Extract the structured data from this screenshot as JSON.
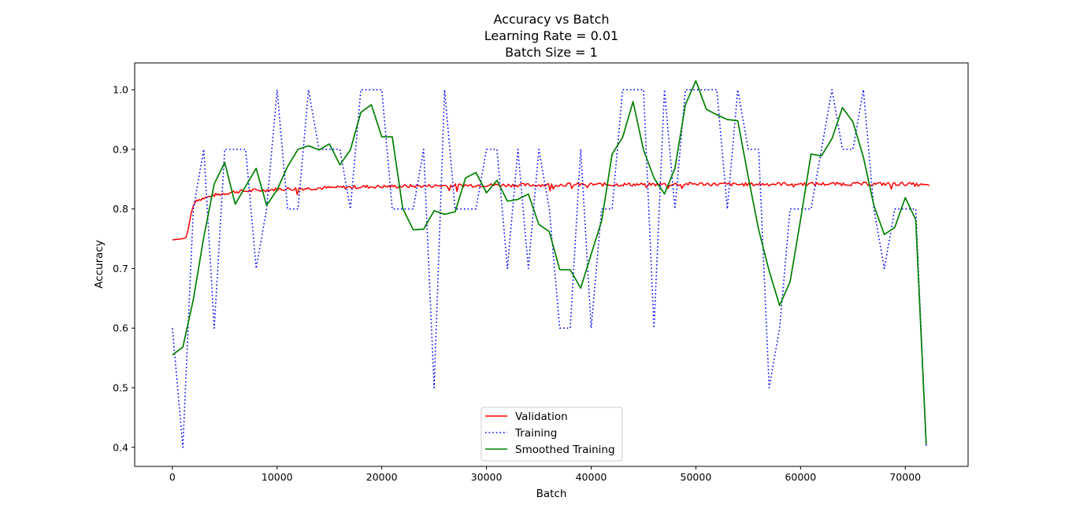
{
  "chart_data": {
    "type": "line",
    "title_lines": [
      "Accuracy vs Batch",
      "Learning Rate = 0.01",
      "Batch Size = 1"
    ],
    "xlabel": "Batch",
    "ylabel": "Accuracy",
    "xlim": [
      -3600,
      76000
    ],
    "ylim": [
      0.368,
      1.045
    ],
    "xticks": [
      0,
      10000,
      20000,
      30000,
      40000,
      50000,
      60000,
      70000
    ],
    "yticks": [
      0.4,
      0.5,
      0.6,
      0.7,
      0.8,
      0.9,
      1.0
    ],
    "xtick_labels": [
      "0",
      "10000",
      "20000",
      "30000",
      "40000",
      "50000",
      "60000",
      "70000"
    ],
    "ytick_labels": [
      "0.4",
      "0.5",
      "0.6",
      "0.7",
      "0.8",
      "0.9",
      "1.0"
    ],
    "grid": false,
    "legend_position": "lower center",
    "series": [
      {
        "name": "Validation",
        "color": "#ff0000",
        "style": "solid",
        "noise": true,
        "x": [
          0,
          500,
          1000,
          1300,
          1500,
          1800,
          2000,
          2300,
          3000,
          4000,
          5000,
          6000,
          8000,
          10000,
          14000,
          18000,
          22000,
          26000,
          30000,
          34000,
          38000,
          42000,
          46000,
          50000,
          54000,
          58000,
          62000,
          66000,
          70000,
          72300
        ],
        "y": [
          0.748,
          0.749,
          0.75,
          0.752,
          0.765,
          0.793,
          0.805,
          0.815,
          0.818,
          0.823,
          0.826,
          0.829,
          0.831,
          0.833,
          0.835,
          0.837,
          0.838,
          0.839,
          0.84,
          0.84,
          0.841,
          0.841,
          0.841,
          0.842,
          0.841,
          0.842,
          0.842,
          0.842,
          0.842,
          0.839
        ]
      },
      {
        "name": "Training",
        "color": "#0000ff",
        "style": "dotted",
        "x": [
          0,
          1000,
          2000,
          3000,
          4000,
          5000,
          6000,
          7000,
          8000,
          9000,
          10000,
          11000,
          12000,
          13000,
          14000,
          15000,
          16000,
          17000,
          18000,
          19000,
          20000,
          21000,
          22000,
          23000,
          24000,
          25000,
          26000,
          27000,
          28000,
          29000,
          30000,
          31000,
          32000,
          33000,
          34000,
          35000,
          36000,
          37000,
          38000,
          39000,
          40000,
          41000,
          42000,
          43000,
          44000,
          45000,
          46000,
          47000,
          48000,
          49000,
          50000,
          51000,
          52000,
          53000,
          54000,
          55000,
          56000,
          57000,
          58000,
          59000,
          60000,
          61000,
          62000,
          63000,
          64000,
          65000,
          66000,
          67000,
          68000,
          69000,
          70000,
          71000,
          72000
        ],
        "y": [
          0.6,
          0.4,
          0.8,
          0.9,
          0.6,
          0.9,
          0.9,
          0.9,
          0.7,
          0.8,
          1.0,
          0.8,
          0.8,
          1.0,
          0.9,
          0.9,
          0.9,
          0.8,
          1.0,
          1.0,
          1.0,
          0.8,
          0.8,
          0.8,
          0.9,
          0.5,
          1.0,
          0.8,
          0.8,
          0.8,
          0.9,
          0.9,
          0.7,
          0.9,
          0.7,
          0.9,
          0.8,
          0.6,
          0.6,
          0.9,
          0.6,
          0.8,
          0.8,
          1.0,
          1.0,
          1.0,
          0.6,
          1.0,
          0.8,
          1.0,
          1.0,
          1.0,
          1.0,
          0.8,
          1.0,
          0.9,
          0.9,
          0.5,
          0.6,
          0.8,
          0.8,
          0.8,
          0.9,
          1.0,
          0.9,
          0.9,
          1.0,
          0.8,
          0.7,
          0.8,
          0.8,
          0.8,
          0.4
        ]
      },
      {
        "name": "Smoothed Training",
        "color": "#008000",
        "style": "solid",
        "x": [
          0,
          1000,
          2000,
          3000,
          4000,
          5000,
          6000,
          7000,
          8000,
          9000,
          10000,
          11000,
          12000,
          13000,
          14000,
          15000,
          16000,
          17000,
          18000,
          19000,
          20000,
          21000,
          22000,
          23000,
          24000,
          25000,
          26000,
          27000,
          28000,
          29000,
          30000,
          31000,
          32000,
          33000,
          34000,
          35000,
          36000,
          37000,
          38000,
          39000,
          40000,
          41000,
          42000,
          43000,
          44000,
          45000,
          46000,
          47000,
          48000,
          49000,
          50000,
          51000,
          52000,
          53000,
          54000,
          55000,
          56000,
          57000,
          58000,
          59000,
          60000,
          61000,
          62000,
          63000,
          64000,
          65000,
          66000,
          67000,
          68000,
          69000,
          70000,
          71000,
          72000
        ],
        "y": [
          0.555,
          0.568,
          0.648,
          0.753,
          0.842,
          0.878,
          0.808,
          0.838,
          0.868,
          0.806,
          0.832,
          0.871,
          0.9,
          0.906,
          0.899,
          0.909,
          0.874,
          0.899,
          0.962,
          0.975,
          0.921,
          0.921,
          0.801,
          0.765,
          0.766,
          0.797,
          0.791,
          0.795,
          0.852,
          0.861,
          0.827,
          0.848,
          0.813,
          0.816,
          0.825,
          0.774,
          0.762,
          0.698,
          0.698,
          0.667,
          0.724,
          0.78,
          0.892,
          0.92,
          0.98,
          0.899,
          0.852,
          0.825,
          0.868,
          0.975,
          1.015,
          0.967,
          0.958,
          0.95,
          0.948,
          0.854,
          0.765,
          0.696,
          0.638,
          0.678,
          0.782,
          0.892,
          0.889,
          0.918,
          0.97,
          0.946,
          0.887,
          0.806,
          0.757,
          0.769,
          0.819,
          0.782,
          0.405
        ]
      }
    ]
  }
}
